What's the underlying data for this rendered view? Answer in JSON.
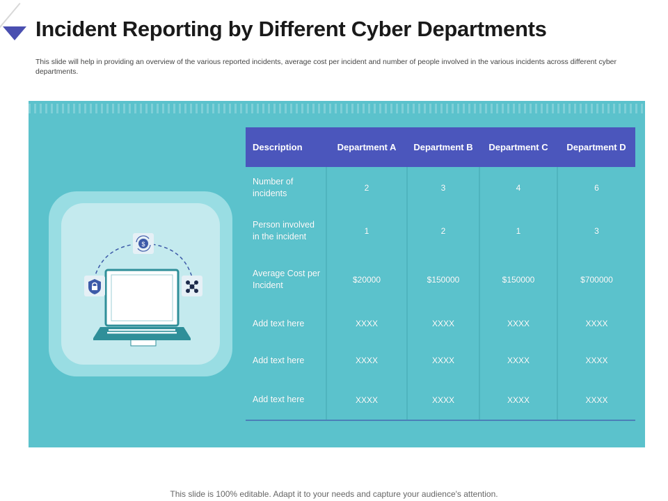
{
  "slide": {
    "title": "Incident Reporting by Different Cyber Departments",
    "subtitle": "This slide will help in providing an overview of the  various reported incidents, average cost per incident and  number of people involved in the various incidents across different cyber departments.",
    "footer": "This slide is 100% editable. Adapt it to your needs and capture your audience's attention."
  },
  "colors": {
    "accent": "#4b56bc",
    "panel": "#5bc2cc",
    "frame_outer": "#99dde3",
    "frame_inner": "#c4eaee"
  },
  "illustration": {
    "icons": [
      "laptop-icon",
      "dollar-sync-icon",
      "lock-shield-icon",
      "network-people-icon"
    ]
  },
  "table": {
    "headers": [
      "Description",
      "Department A",
      "Department B",
      "Department C",
      "Department D"
    ],
    "rows": [
      {
        "label": "Number of incidents",
        "values": [
          "2",
          "3",
          "4",
          "6"
        ]
      },
      {
        "label": "Person involved in the incident",
        "values": [
          "1",
          "2",
          "1",
          "3"
        ]
      },
      {
        "label": "Average Cost per Incident",
        "values": [
          "$20000",
          "$150000",
          "$150000",
          "$700000"
        ]
      },
      {
        "label": "Add text here",
        "values": [
          "XXXX",
          "XXXX",
          "XXXX",
          "XXXX"
        ]
      },
      {
        "label": "Add text here",
        "values": [
          "XXXX",
          "XXXX",
          "XXXX",
          "XXXX"
        ]
      },
      {
        "label": "Add text here",
        "values": [
          "XXXX",
          "XXXX",
          "XXXX",
          "XXXX"
        ]
      }
    ]
  }
}
